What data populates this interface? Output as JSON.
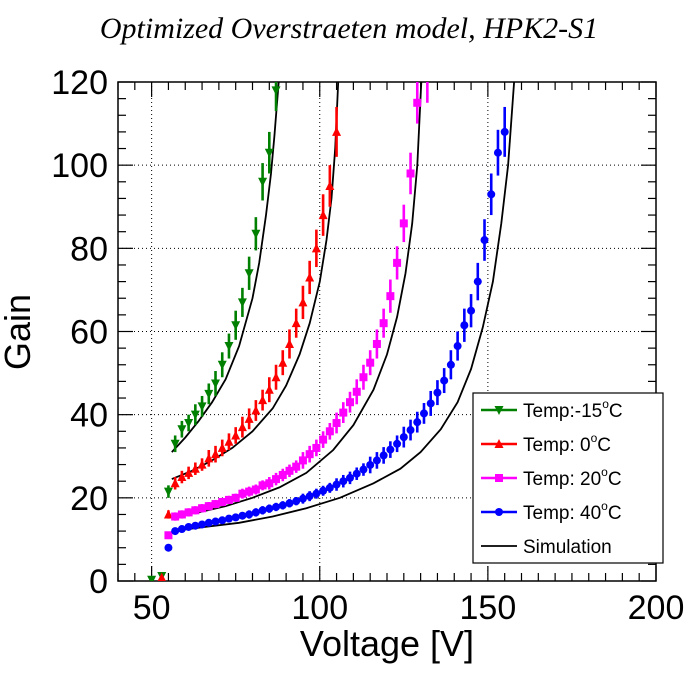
{
  "chart_data": {
    "type": "scatter",
    "title": "Optimized Overstraeten model, HPK2-S1",
    "xlabel": "Voltage [V]",
    "ylabel": "Gain",
    "xlim": [
      40,
      200
    ],
    "ylim": [
      0,
      120
    ],
    "x_ticks": [
      "50",
      "100",
      "150",
      "200"
    ],
    "y_ticks": [
      "0",
      "20",
      "40",
      "60",
      "80",
      "100",
      "120"
    ],
    "grid": true,
    "legend_position": "bottom-right",
    "series": [
      {
        "name": "Temp:-15°C",
        "legend_main": "Temp:-15",
        "legend_unit": "C",
        "marker": "triangle-down",
        "color": "#008000",
        "x": [
          50,
          53,
          55,
          57,
          59,
          61,
          63,
          65,
          67,
          69,
          71,
          73,
          75,
          77,
          79,
          81,
          83,
          85,
          87
        ],
        "y": [
          0.3,
          1.2,
          21.5,
          33,
          36.5,
          38,
          40,
          42,
          45,
          47.5,
          52,
          56.5,
          61.5,
          67,
          74,
          83.5,
          96,
          103,
          118
        ],
        "err": [
          0.3,
          0.4,
          1.5,
          2,
          2,
          2,
          2.5,
          2.5,
          2.5,
          3,
          3,
          3,
          3.5,
          3.5,
          4,
          4,
          4.5,
          5,
          5
        ]
      },
      {
        "name": "Temp: 0°C",
        "legend_main": "Temp:   0",
        "legend_unit": "C",
        "marker": "triangle-up",
        "color": "#ff0000",
        "x": [
          53,
          55,
          57,
          59,
          61,
          63,
          65,
          67,
          69,
          71,
          73,
          75,
          77,
          79,
          81,
          83,
          85,
          87,
          89,
          91,
          93,
          95,
          97,
          99,
          101,
          103,
          105
        ],
        "y": [
          0.8,
          16,
          23.5,
          25,
          26,
          27,
          28,
          29.5,
          30.5,
          32,
          33.5,
          35,
          37,
          39,
          41,
          43.5,
          46,
          49,
          52.5,
          57,
          62,
          67,
          73,
          80,
          88,
          95,
          108
        ],
        "err": [
          0.3,
          1,
          1.5,
          1.5,
          1.5,
          1.5,
          1.5,
          2,
          2,
          2,
          2,
          2,
          2.5,
          2.5,
          2.5,
          2.5,
          3,
          3,
          3,
          3.5,
          3.5,
          4,
          4,
          4.5,
          5,
          5,
          6
        ]
      },
      {
        "name": "Temp: 20°C",
        "legend_main": "Temp: 20",
        "legend_unit": "C",
        "marker": "square",
        "color": "#ff00ff",
        "x": [
          55,
          57,
          59,
          61,
          63,
          65,
          67,
          69,
          71,
          73,
          75,
          77,
          79,
          81,
          83,
          85,
          87,
          89,
          91,
          93,
          95,
          97,
          99,
          101,
          103,
          105,
          107,
          109,
          111,
          113,
          115,
          117,
          119,
          121,
          123,
          125,
          127,
          129,
          132
        ],
        "y": [
          11,
          15.5,
          16,
          16.5,
          17,
          17.5,
          18,
          18.5,
          19,
          19.5,
          20,
          21,
          21.5,
          22,
          23,
          23.5,
          24.5,
          25.5,
          26.5,
          27.5,
          29,
          30.5,
          32,
          34,
          36,
          38,
          40.5,
          43,
          45.5,
          49,
          52.5,
          57,
          62,
          68.5,
          76.5,
          86,
          98,
          115,
          121
        ],
        "err": [
          0.8,
          1,
          1,
          1,
          1,
          1,
          1,
          1,
          1,
          1,
          1,
          1.2,
          1.2,
          1.2,
          1.2,
          1.5,
          1.5,
          1.5,
          1.5,
          1.5,
          2,
          2,
          2,
          2,
          2,
          2.5,
          2.5,
          2.5,
          3,
          3,
          3,
          3.5,
          3.5,
          4,
          4,
          4.5,
          5,
          5,
          6
        ]
      },
      {
        "name": "Temp: 40°C",
        "legend_main": "Temp: 40",
        "legend_unit": "C",
        "marker": "circle",
        "color": "#0000ff",
        "x": [
          55,
          57,
          59,
          61,
          63,
          65,
          67,
          69,
          71,
          73,
          75,
          77,
          79,
          81,
          83,
          85,
          87,
          89,
          91,
          93,
          95,
          97,
          99,
          101,
          103,
          105,
          107,
          109,
          111,
          113,
          115,
          117,
          119,
          121,
          123,
          125,
          127,
          129,
          131,
          133,
          135,
          137,
          139,
          141,
          143,
          145,
          147,
          149,
          151,
          153,
          155
        ],
        "y": [
          8,
          12,
          12.5,
          13,
          13.3,
          13.6,
          14,
          14.3,
          14.6,
          15,
          15.3,
          15.7,
          16,
          16.5,
          17,
          17.4,
          17.8,
          18.2,
          18.7,
          19.2,
          19.8,
          20.4,
          21,
          21.7,
          22.4,
          23.2,
          24,
          24.8,
          25.8,
          26.8,
          27.9,
          29,
          30.2,
          31.6,
          33,
          34.6,
          36.3,
          38.2,
          40.3,
          42.7,
          45.3,
          48.2,
          52,
          56.5,
          61.5,
          65,
          72,
          82,
          93,
          103,
          108
        ],
        "err": [
          0.5,
          0.8,
          0.8,
          0.8,
          0.8,
          0.8,
          0.8,
          0.8,
          0.8,
          0.8,
          0.8,
          0.8,
          1,
          1,
          1,
          1,
          1,
          1,
          1,
          1,
          1.2,
          1.2,
          1.2,
          1.2,
          1.2,
          1.5,
          1.5,
          1.5,
          1.5,
          1.5,
          2,
          2,
          2,
          2,
          2,
          2.5,
          2.5,
          2.5,
          2.5,
          3,
          3,
          3,
          3.5,
          3.5,
          4,
          4,
          4.5,
          5,
          5,
          5.5,
          6
        ]
      }
    ],
    "simulation": {
      "name": "Simulation",
      "color": "#000000",
      "curves": [
        {
          "x": [
            56,
            60,
            64,
            68,
            72,
            76,
            80,
            82,
            84,
            85.5,
            86.5,
            87.2,
            87.8
          ],
          "y": [
            31,
            34.5,
            38.5,
            43,
            48.5,
            56.5,
            68,
            76.5,
            88,
            98,
            107,
            114,
            120
          ]
        },
        {
          "x": [
            56,
            62,
            68,
            74,
            80,
            86,
            90,
            94,
            97,
            100,
            102,
            103.5,
            104.6,
            105.5
          ],
          "y": [
            24.5,
            26.5,
            29,
            32,
            36,
            41.5,
            47,
            54.5,
            62,
            72,
            82,
            92,
            104,
            120
          ]
        },
        {
          "x": [
            56,
            64,
            72,
            80,
            88,
            96,
            104,
            110,
            116,
            120,
            123,
            125.5,
            127.5,
            129,
            130.2
          ],
          "y": [
            15.5,
            16.5,
            18,
            20,
            22.5,
            26,
            31.5,
            37.5,
            46,
            54.5,
            63.5,
            74,
            86,
            100,
            120
          ]
        },
        {
          "x": [
            56,
            66,
            76,
            86,
            96,
            106,
            116,
            124,
            130,
            136,
            141,
            145,
            148.5,
            151.5,
            154,
            156,
            157.8
          ],
          "y": [
            12,
            13,
            14,
            15.5,
            17.5,
            20,
            23.5,
            27,
            31,
            36.5,
            43,
            51,
            61,
            72,
            86,
            100,
            120
          ]
        }
      ]
    }
  }
}
